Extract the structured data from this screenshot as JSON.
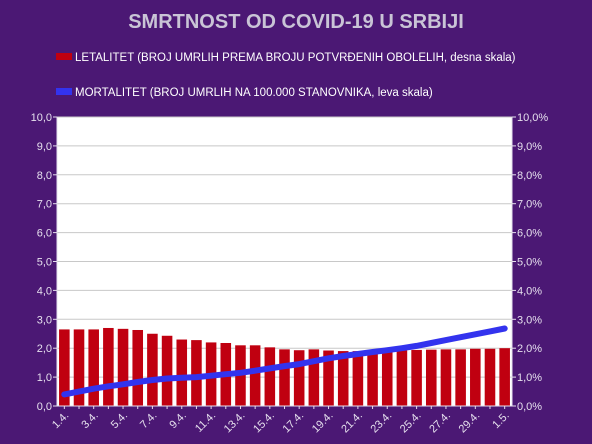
{
  "chart_data": {
    "type": "bar",
    "title": "SMRTNOST OD COVID-19 U SRBIJI",
    "legend": [
      {
        "name": "LETALITET (BROJ UMRLIH PREMA BROJU POTVRĐENIH OBOLELIH, desna skala)",
        "color": "#c00010"
      },
      {
        "name": "MORTALITET (BROJ UMRLIH NA 100.000 STANOVNIKA, leva skala)",
        "color": "#3333ee"
      }
    ],
    "categories": [
      "1.4.",
      "2.4.",
      "3.4.",
      "4.4.",
      "5.4.",
      "6.4.",
      "7.4.",
      "8.4.",
      "9.4.",
      "10.4.",
      "11.4.",
      "12.4.",
      "13.4.",
      "14.4.",
      "15.4.",
      "16.4.",
      "17.4.",
      "18.4.",
      "19.4.",
      "20.4.",
      "21.4.",
      "22.4.",
      "23.4.",
      "24.4.",
      "25.4.",
      "26.4.",
      "27.4.",
      "28.4.",
      "29.4.",
      "30.4.",
      "1.5."
    ],
    "x_tick_labels_shown": [
      "1.4.",
      "3.4.",
      "5.4.",
      "7.4.",
      "9.4.",
      "11.4.",
      "13.4.",
      "15.4.",
      "17.4.",
      "19.4.",
      "21.4.",
      "23.4.",
      "25.4.",
      "27.4.",
      "29.4.",
      "1.5."
    ],
    "series": [
      {
        "name": "LETALITET (BROJ UMRLIH PREMA BROJU POTVRĐENIH OBOLELIH, desna skala)",
        "type": "bar",
        "axis": "right",
        "unit": "%",
        "color": "#c00010",
        "values": [
          2.65,
          2.65,
          2.65,
          2.7,
          2.67,
          2.63,
          2.5,
          2.43,
          2.3,
          2.28,
          2.2,
          2.18,
          2.1,
          2.1,
          2.03,
          1.96,
          1.93,
          1.96,
          1.92,
          1.9,
          1.9,
          1.92,
          1.91,
          1.92,
          1.94,
          1.95,
          1.96,
          1.96,
          1.98,
          1.98,
          2.0
        ]
      },
      {
        "name": "MORTALITET (BROJ UMRLIH NA 100.000 STANOVNIKA, leva skala)",
        "type": "line",
        "axis": "left",
        "color": "#3333ee",
        "values": [
          0.4,
          0.5,
          0.6,
          0.68,
          0.75,
          0.83,
          0.9,
          0.95,
          0.98,
          1.0,
          1.05,
          1.1,
          1.15,
          1.22,
          1.3,
          1.38,
          1.45,
          1.55,
          1.65,
          1.73,
          1.8,
          1.87,
          1.93,
          2.0,
          2.08,
          2.18,
          2.28,
          2.38,
          2.48,
          2.58,
          2.68
        ]
      }
    ],
    "y_left": {
      "min": 0,
      "max": 10,
      "ticks": [
        "0,0",
        "1,0",
        "2,0",
        "3,0",
        "4,0",
        "5,0",
        "6,0",
        "7,0",
        "8,0",
        "9,0",
        "10,0"
      ]
    },
    "y_right": {
      "min": 0,
      "max": 10,
      "ticks": [
        "0,0%",
        "1,0%",
        "2,0%",
        "3,0%",
        "4,0%",
        "5,0%",
        "6,0%",
        "7,0%",
        "8,0%",
        "9,0%",
        "10,0%"
      ]
    },
    "grid": true,
    "legend_position": "top-left",
    "colors": {
      "background": "#4b1874",
      "plot_background": "#ffffff",
      "grid": "#c8c8c8"
    }
  }
}
